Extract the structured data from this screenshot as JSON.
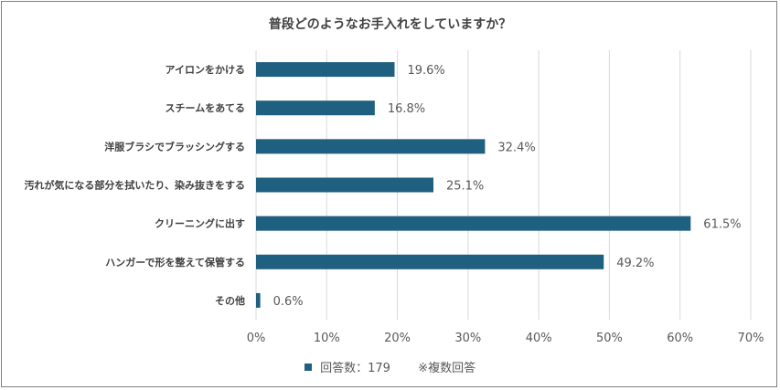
{
  "chart_data": {
    "type": "bar",
    "orientation": "horizontal",
    "title": "普段どのようなお手入れをしていますか？",
    "categories": [
      "アイロンをかける",
      "スチームをあてる",
      "洋服ブラシでブラッシングする",
      "汚れが気になる部分を拭いたり、染み抜きをする",
      "クリーニングに出す",
      "ハンガーで形を整えて保管する",
      "その他"
    ],
    "values": [
      19.6,
      16.8,
      32.4,
      25.1,
      61.5,
      49.2,
      0.6
    ],
    "value_labels": [
      "19.6%",
      "16.8%",
      "32.4%",
      "25.1%",
      "61.5%",
      "49.2%",
      "0.6%"
    ],
    "xlim": [
      0,
      70
    ],
    "x_ticks": [
      "0%",
      "10%",
      "20%",
      "30%",
      "40%",
      "50%",
      "60%",
      "70%"
    ],
    "grid": "vertical",
    "bar_color": "#1f5f7f",
    "legend": {
      "position": "bottom",
      "label": "回答数：179",
      "note": "※複数回答"
    }
  }
}
